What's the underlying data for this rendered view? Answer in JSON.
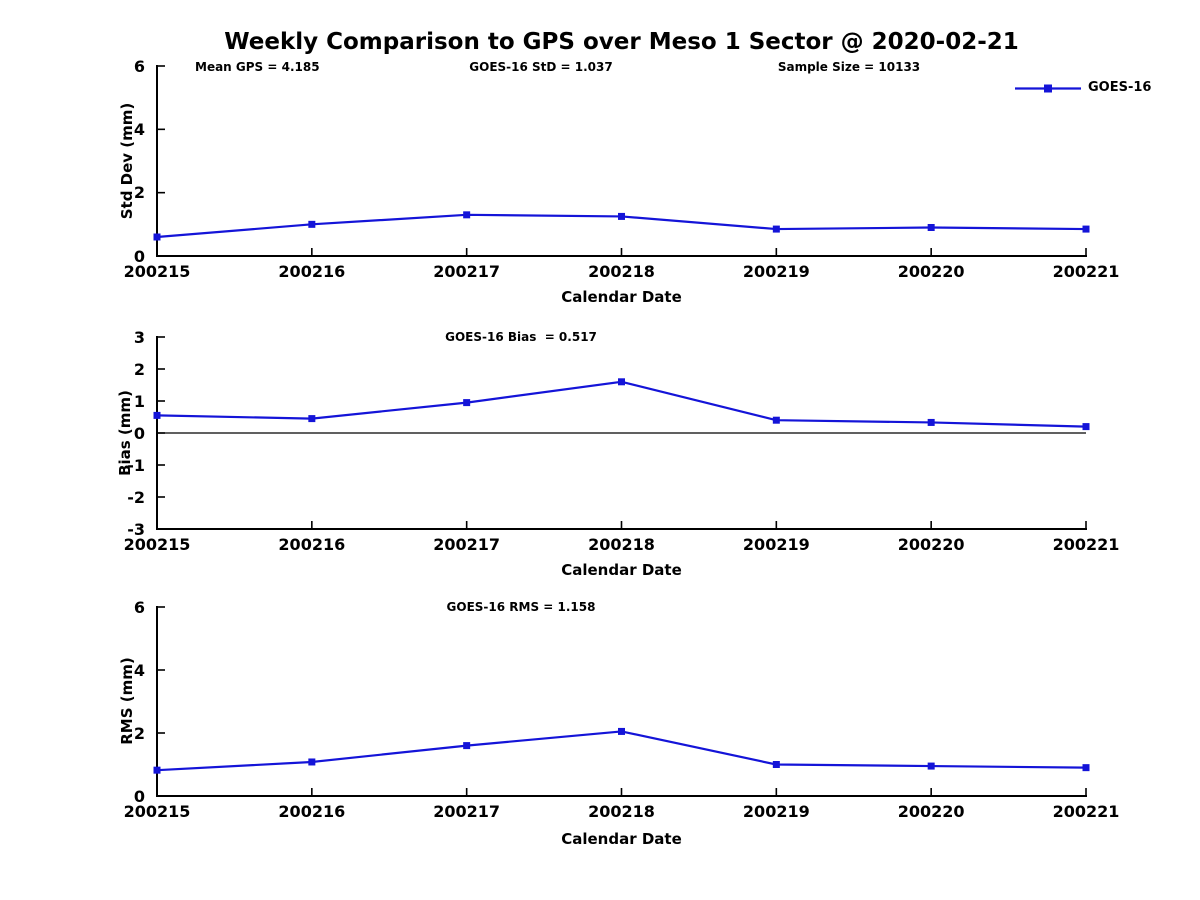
{
  "header": {
    "title": "Weekly Comparison to GPS over Meso 1 Sector @ 2020-02-21",
    "annotations": [
      {
        "label": "Mean GPS = 4.185"
      },
      {
        "label": "GOES-16 StD = 1.037"
      },
      {
        "label": "Sample Size = 10133"
      }
    ]
  },
  "legend": {
    "label": "GOES-16",
    "marker": "filled-square"
  },
  "colors": {
    "series": "#1414d8",
    "axis": "#000000",
    "background": "#ffffff",
    "text": "#000000"
  },
  "chart_data": [
    {
      "type": "line",
      "title": "",
      "series_name": "GOES-16",
      "categories": [
        "200215",
        "200216",
        "200217",
        "200218",
        "200219",
        "200220",
        "200221"
      ],
      "values": [
        0.6,
        1.0,
        1.3,
        1.25,
        0.85,
        0.9,
        0.85
      ],
      "xlabel": "Calendar Date",
      "ylabel": "Std Dev (mm)",
      "ylim": [
        0,
        6
      ],
      "yticks": [
        0,
        2,
        4,
        6
      ],
      "grid": false,
      "zero_line": false,
      "legend_position": "top-right-outside",
      "marker": "square"
    },
    {
      "type": "line",
      "title": "GOES-16 Bias  = 0.517",
      "series_name": "GOES-16",
      "categories": [
        "200215",
        "200216",
        "200217",
        "200218",
        "200219",
        "200220",
        "200221"
      ],
      "values": [
        0.55,
        0.45,
        0.95,
        1.6,
        0.4,
        0.33,
        0.2
      ],
      "xlabel": "Calendar Date",
      "ylabel": "Bias (mm)",
      "ylim": [
        -3,
        3
      ],
      "yticks": [
        3,
        2,
        1,
        0,
        -1,
        -2,
        -3
      ],
      "grid": false,
      "zero_line": true,
      "marker": "square"
    },
    {
      "type": "line",
      "title": "GOES-16 RMS = 1.158",
      "series_name": "GOES-16",
      "categories": [
        "200215",
        "200216",
        "200217",
        "200218",
        "200219",
        "200220",
        "200221"
      ],
      "values": [
        0.82,
        1.08,
        1.6,
        2.05,
        1.0,
        0.95,
        0.9
      ],
      "xlabel": "Calendar Date",
      "ylabel": "RMS (mm)",
      "ylim": [
        0,
        6
      ],
      "yticks": [
        0,
        2,
        4,
        6
      ],
      "grid": false,
      "zero_line": false,
      "marker": "square"
    }
  ]
}
